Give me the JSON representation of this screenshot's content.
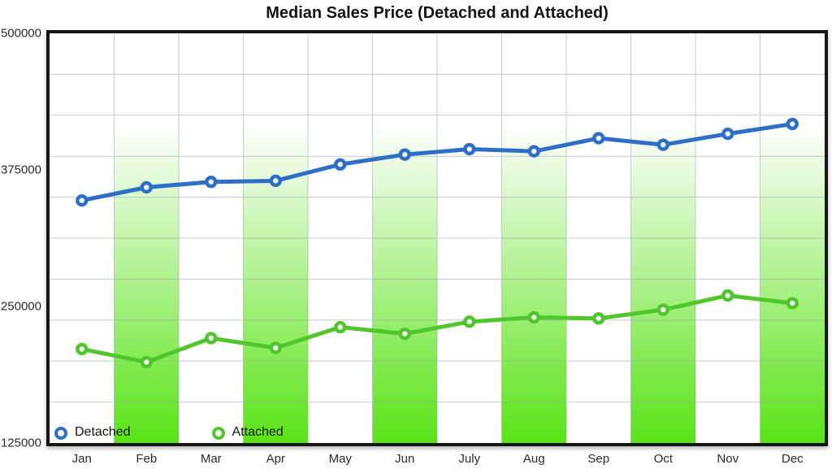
{
  "title": "Median Sales Price (Detached and Attached)",
  "legend": {
    "items": [
      {
        "label": "Detached",
        "color": "#2d6ec9"
      },
      {
        "label": "Attached",
        "color": "#4fc62b"
      }
    ]
  },
  "colors": {
    "detached_line": "#2d6ec9",
    "attached_line": "#4fc62b",
    "bar_gradient_top": "#ffffff",
    "bar_gradient_bottom": "#5ae317",
    "gridline": "#98a3aa",
    "plot_border": "#161616",
    "text": "#2b2b2b"
  },
  "chart_data": {
    "type": "line",
    "title": "Median Sales Price (Detached and Attached)",
    "categories": [
      "Jan",
      "Feb",
      "Mar",
      "Apr",
      "May",
      "Jun",
      "July",
      "Aug",
      "Sep",
      "Oct",
      "Nov",
      "Dec"
    ],
    "series": [
      {
        "name": "Detached",
        "color": "#2d6ec9",
        "values": [
          347000,
          359000,
          364000,
          365000,
          380000,
          389000,
          394000,
          392000,
          404000,
          398000,
          408000,
          417000
        ]
      },
      {
        "name": "Attached",
        "color": "#4fc62b",
        "values": [
          211000,
          199000,
          221000,
          212000,
          231000,
          225000,
          236000,
          240000,
          239000,
          247000,
          260000,
          253000
        ]
      }
    ],
    "xlabel": "",
    "ylabel": "",
    "ylim": [
      125000,
      500000
    ],
    "y_tick_labels": [
      "500000",
      "375000",
      "250000",
      "125000"
    ],
    "y_tick_values": [
      500000,
      375000,
      250000,
      125000
    ],
    "grid": {
      "visible": true,
      "h_divisions": 10,
      "v_divisions": 12
    },
    "background_bars": {
      "column_indexes": [
        1,
        3,
        5,
        7,
        9,
        11
      ],
      "columns": [
        "Feb",
        "Apr",
        "Jun",
        "Aug",
        "Oct",
        "Dec"
      ],
      "gradient_top": "#ffffff",
      "gradient_bottom": "#5ae317"
    },
    "legend_position": "inside-bottom-left",
    "marker": "open-circle"
  }
}
